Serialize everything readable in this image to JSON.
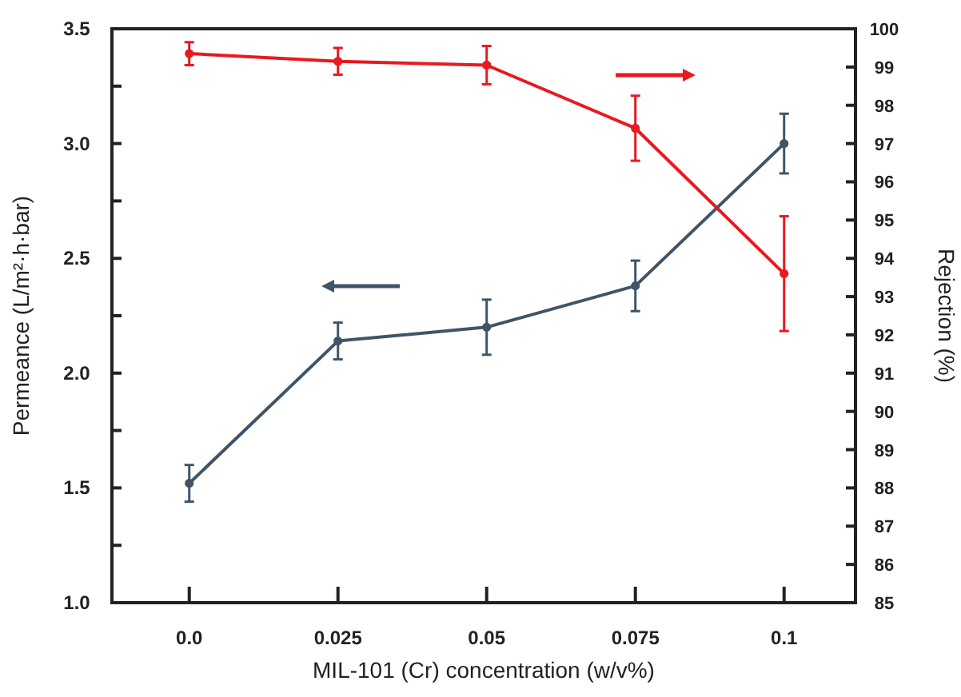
{
  "chart_data": {
    "type": "line",
    "xlabel": "MIL-101 (Cr) concentration (w/v%)",
    "ylabel": "Permeance (L/m²·h·bar)",
    "y2label": "Rejection (%)",
    "x": [
      0,
      0.025,
      0.05,
      0.075,
      0.1
    ],
    "xlim": [
      -0.013,
      0.112
    ],
    "xticks": [
      {
        "value": 0,
        "label": "0.0"
      },
      0.025,
      0.05,
      0.075,
      0.1
    ],
    "ylim": [
      1,
      3.5
    ],
    "yticks": [
      {
        "value": 1,
        "label": "1.0"
      },
      {
        "value": 1.25,
        "label": null
      },
      {
        "value": 1.5,
        "label": "1.5"
      },
      {
        "value": 1.75,
        "label": null
      },
      {
        "value": 2,
        "label": "2.0"
      },
      {
        "value": 2.25,
        "label": null
      },
      {
        "value": 2.5,
        "label": "2.5"
      },
      {
        "value": 2.75,
        "label": null
      },
      {
        "value": 3,
        "label": "3.0"
      },
      {
        "value": 3.25,
        "label": null
      },
      {
        "value": 3.5,
        "label": "3.5"
      }
    ],
    "y2lim": [
      85,
      100
    ],
    "y2ticks": [
      85,
      86,
      87,
      88,
      89,
      90,
      91,
      92,
      93,
      94,
      95,
      96,
      97,
      98,
      99,
      100
    ],
    "marker": "circle",
    "line_style": "solid",
    "grid": false,
    "series": [
      {
        "color": "#3f5567",
        "values": [
          1.52,
          2.14,
          2.2,
          2.38,
          3.0
        ],
        "errors": [
          0.08,
          0.08,
          0.12,
          0.11,
          0.13
        ]
      },
      {
        "color": "#e8191f",
        "axis": "y2",
        "values": [
          99.35,
          99.15,
          99.05,
          97.4,
          93.6
        ],
        "errors": [
          0.3,
          0.35,
          0.5,
          0.85,
          1.5
        ]
      }
    ]
  }
}
